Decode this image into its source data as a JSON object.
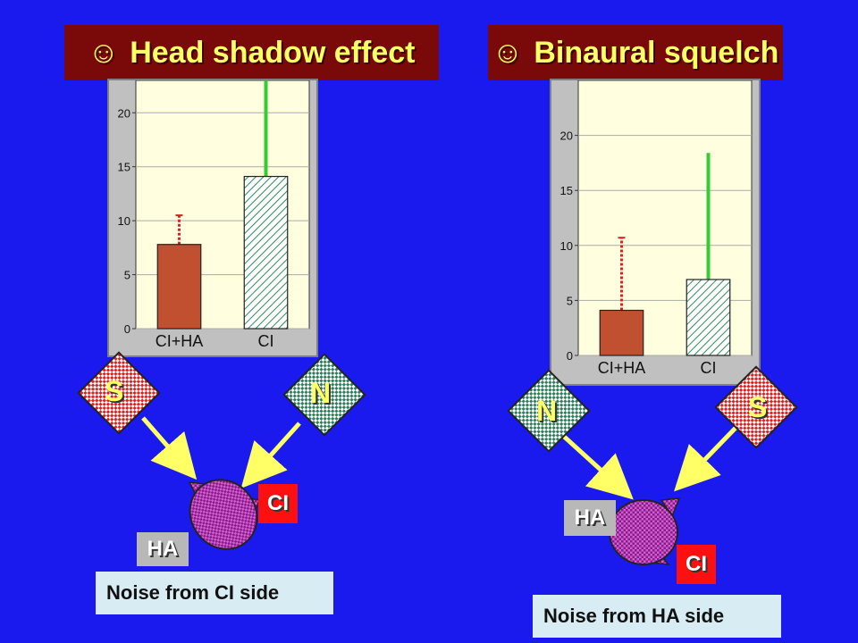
{
  "panels": [
    {
      "title": "Head shadow effect",
      "caption": "Noise from CI side",
      "left_sign": "S",
      "right_sign": "N",
      "ci_tag": "CI",
      "ha_tag": "HA"
    },
    {
      "title": "Binaural squelch",
      "caption": "Noise from HA side",
      "left_sign": "N",
      "right_sign": "S",
      "ci_tag": "CI",
      "ha_tag": "HA"
    }
  ],
  "smiley": "☺",
  "colors": {
    "background": "#1a1aee",
    "title_bg": "#7a0a0a",
    "title_text": "#ffff66",
    "plot_bg": "#ffffe0",
    "bar_ciha": "#c05030",
    "bar_ci_hatch": "#2e8b57",
    "err_ciha": "#e02020",
    "err_ci": "#33cc33",
    "signal_sign": "#e02020",
    "noise_sign": "#2e7d5b",
    "head": "#a030a0",
    "arrow": "#ffff66"
  },
  "chart_data": [
    {
      "type": "bar",
      "categories": [
        "CI+HA",
        "CI"
      ],
      "values": [
        7.8,
        14.1
      ],
      "error_upper": [
        10.5,
        23.5
      ],
      "ylim": [
        0,
        23
      ],
      "yticks": [
        0,
        5,
        10,
        15,
        20
      ]
    },
    {
      "type": "bar",
      "categories": [
        "CI+HA",
        "CI"
      ],
      "values": [
        4.1,
        6.9
      ],
      "error_upper": [
        10.7,
        18.4
      ],
      "ylim": [
        0,
        25
      ],
      "yticks": [
        0,
        5,
        10,
        15,
        20
      ]
    }
  ]
}
